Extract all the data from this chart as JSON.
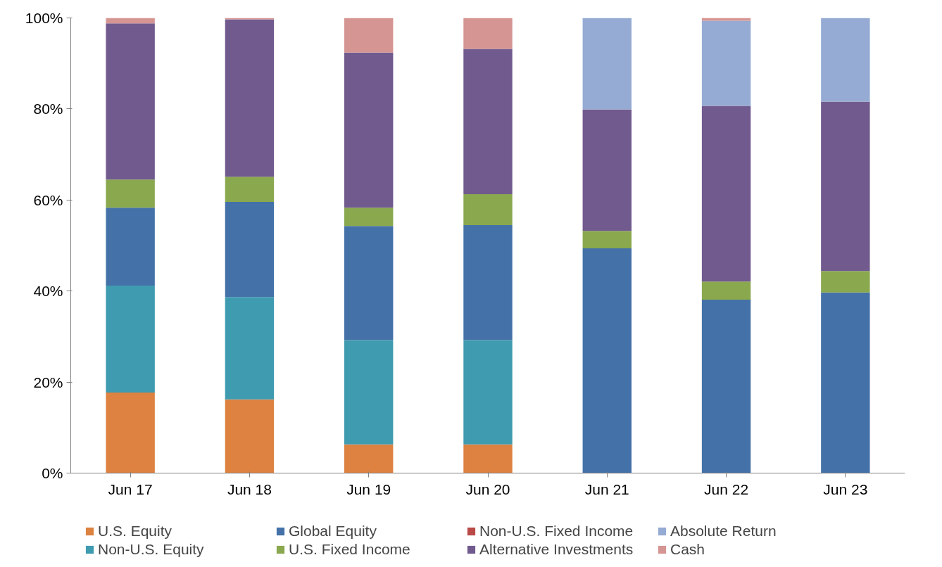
{
  "chart_data": {
    "type": "bar",
    "stacked": true,
    "categories": [
      "Jun 17",
      "Jun 18",
      "Jun 19",
      "Jun 20",
      "Jun 21",
      "Jun 22",
      "Jun 23"
    ],
    "series": [
      {
        "name": "U.S. Equity",
        "color": "#dd8240",
        "values": [
          17.7,
          16.2,
          6.3,
          6.3,
          0,
          0,
          0
        ]
      },
      {
        "name": "Non-U.S. Equity",
        "color": "#3f9bb0",
        "values": [
          23.5,
          22.5,
          22.9,
          22.9,
          0,
          0,
          0
        ]
      },
      {
        "name": "Global Equity",
        "color": "#4472a8",
        "values": [
          17.1,
          20.9,
          25.1,
          25.3,
          49.4,
          38.1,
          39.7
        ]
      },
      {
        "name": "U.S. Fixed Income",
        "color": "#8aa84e",
        "values": [
          6.2,
          5.5,
          4.0,
          6.8,
          3.8,
          4.0,
          4.7
        ]
      },
      {
        "name": "Non-U.S. Fixed Income",
        "color": "#b94a48",
        "values": [
          0,
          0,
          0,
          0,
          0,
          0,
          0
        ]
      },
      {
        "name": "Alternative Investments",
        "color": "#715a8e",
        "values": [
          34.3,
          34.6,
          34.1,
          31.9,
          26.7,
          38.6,
          37.2
        ]
      },
      {
        "name": "Absolute Return",
        "color": "#95abd3",
        "values": [
          0,
          0,
          0,
          0,
          20.1,
          18.7,
          18.4
        ]
      },
      {
        "name": "Cash",
        "color": "#d59593",
        "values": [
          1.2,
          0.3,
          7.6,
          6.8,
          0,
          0.6,
          0
        ]
      }
    ],
    "ylim": [
      0,
      100
    ],
    "yticks": [
      {
        "value": 0,
        "label": "0%"
      },
      {
        "value": 20,
        "label": "20%"
      },
      {
        "value": 40,
        "label": "40%"
      },
      {
        "value": 60,
        "label": "60%"
      },
      {
        "value": 80,
        "label": "80%"
      },
      {
        "value": 100,
        "label": "100%"
      }
    ],
    "grid": false,
    "legend": "bottom"
  }
}
